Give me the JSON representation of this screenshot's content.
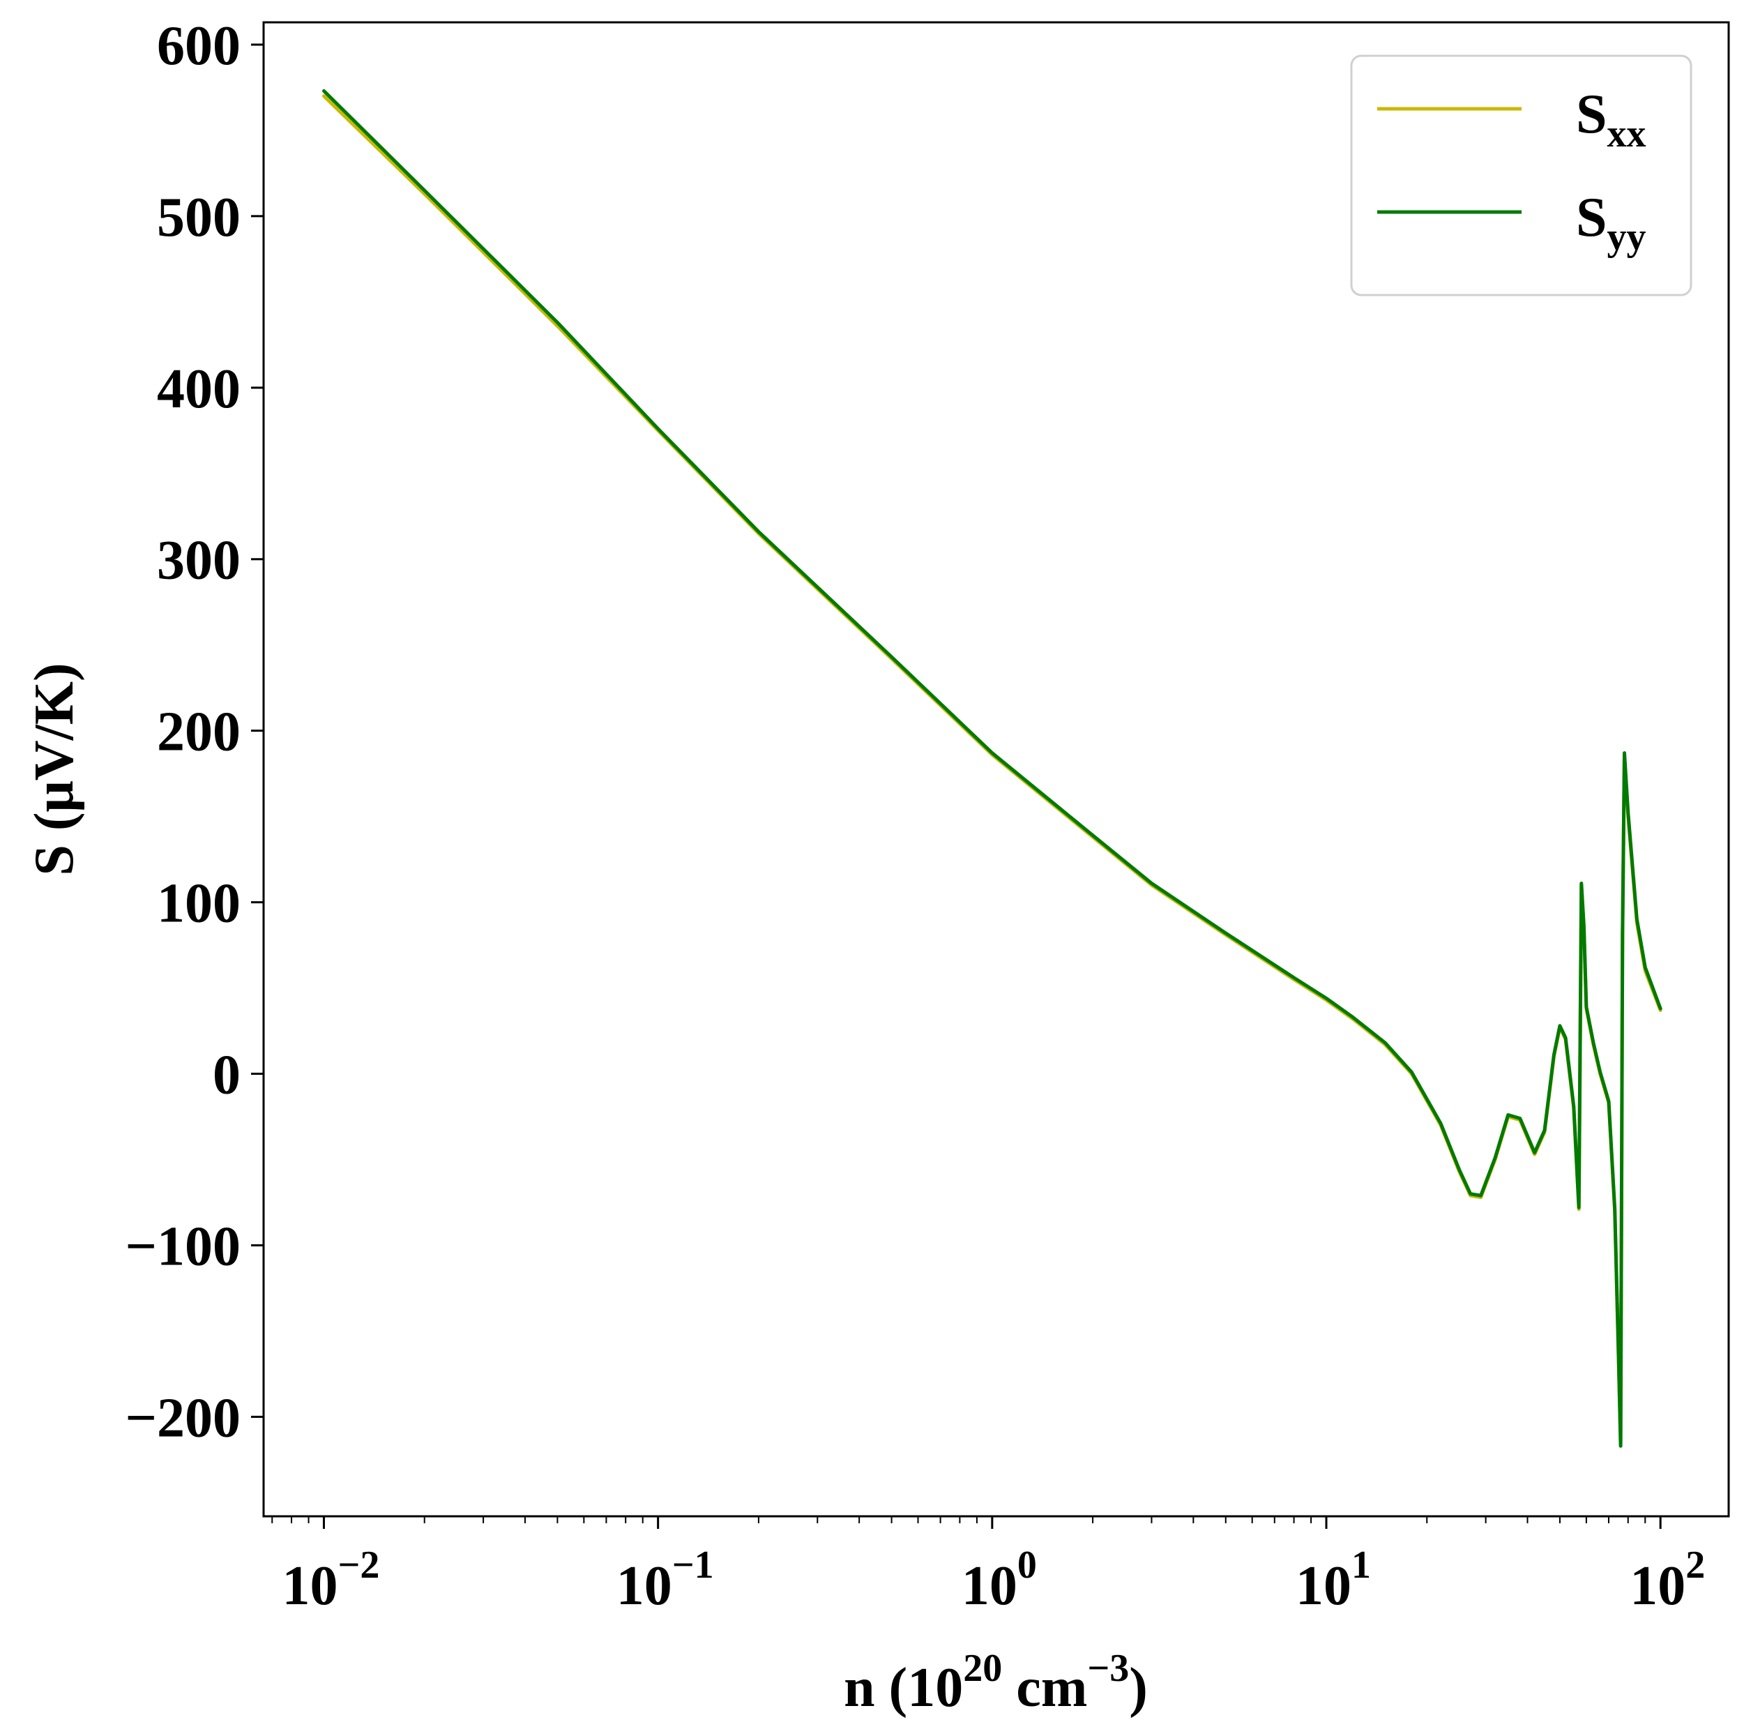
{
  "chart_data": {
    "type": "line",
    "xscale": "log",
    "xlim": [
      0.0066,
      160
    ],
    "ylim": [
      -258,
      613
    ],
    "xlabel": {
      "base": "n (10",
      "sup1": "20",
      "mid": " cm",
      "sup2": "−3",
      "end": ")"
    },
    "ylabel": "S (μV/K)",
    "x_ticks": [
      {
        "value": 0.01,
        "base": "10",
        "exp": "−2"
      },
      {
        "value": 0.1,
        "base": "10",
        "exp": "−1"
      },
      {
        "value": 1,
        "base": "10",
        "exp": "0"
      },
      {
        "value": 10,
        "base": "10",
        "exp": "1"
      },
      {
        "value": 100,
        "base": "10",
        "exp": "2"
      }
    ],
    "y_ticks": [
      {
        "value": 600,
        "label": "600"
      },
      {
        "value": 500,
        "label": "500"
      },
      {
        "value": 400,
        "label": "400"
      },
      {
        "value": 300,
        "label": "300"
      },
      {
        "value": 200,
        "label": "200"
      },
      {
        "value": 100,
        "label": "100"
      },
      {
        "value": 0,
        "label": "0"
      },
      {
        "value": -100,
        "label": "−100"
      },
      {
        "value": -200,
        "label": "−200"
      }
    ],
    "grid": false,
    "legend_position": "top-right",
    "series": [
      {
        "name": "S",
        "subscript": "xx",
        "color": "#c8b900",
        "x": [
          0.01,
          0.02,
          0.05,
          0.1,
          0.2,
          0.5,
          1,
          2,
          3,
          5,
          8,
          10,
          12,
          15,
          18,
          22,
          25,
          27,
          29,
          32,
          35,
          38,
          42,
          45,
          48,
          50,
          52,
          55,
          57,
          58,
          59,
          60,
          63,
          66,
          70,
          73,
          75,
          76,
          77,
          78,
          80,
          85,
          90,
          100
        ],
        "y": [
          570,
          513,
          436,
          375,
          315,
          242,
          186,
          138,
          110,
          81,
          55,
          43,
          32,
          17,
          0,
          -30,
          -57,
          -71,
          -72,
          -50,
          -25,
          -27,
          -47,
          -34,
          10,
          27,
          20,
          -20,
          -79,
          110,
          85,
          38,
          17,
          0,
          -17,
          -80,
          -170,
          -215,
          80,
          185,
          150,
          88,
          60,
          37
        ]
      },
      {
        "name": "S",
        "subscript": "yy",
        "color": "#007a00",
        "x": [
          0.01,
          0.02,
          0.05,
          0.1,
          0.2,
          0.5,
          1,
          2,
          3,
          5,
          8,
          10,
          12,
          15,
          18,
          22,
          25,
          27,
          29,
          32,
          35,
          38,
          42,
          45,
          48,
          50,
          52,
          55,
          57,
          58,
          59,
          60,
          63,
          66,
          70,
          73,
          75,
          76,
          77,
          78,
          80,
          85,
          90,
          100
        ],
        "y": [
          573,
          515,
          438,
          376,
          316,
          243,
          187,
          139,
          111,
          82,
          56,
          44,
          33,
          18,
          1,
          -29,
          -56,
          -70,
          -71,
          -49,
          -24,
          -26,
          -46,
          -33,
          11,
          28,
          21,
          -19,
          -78,
          111,
          86,
          39,
          18,
          1,
          -16,
          -79,
          -168,
          -217,
          82,
          187,
          152,
          90,
          62,
          38
        ]
      }
    ]
  }
}
